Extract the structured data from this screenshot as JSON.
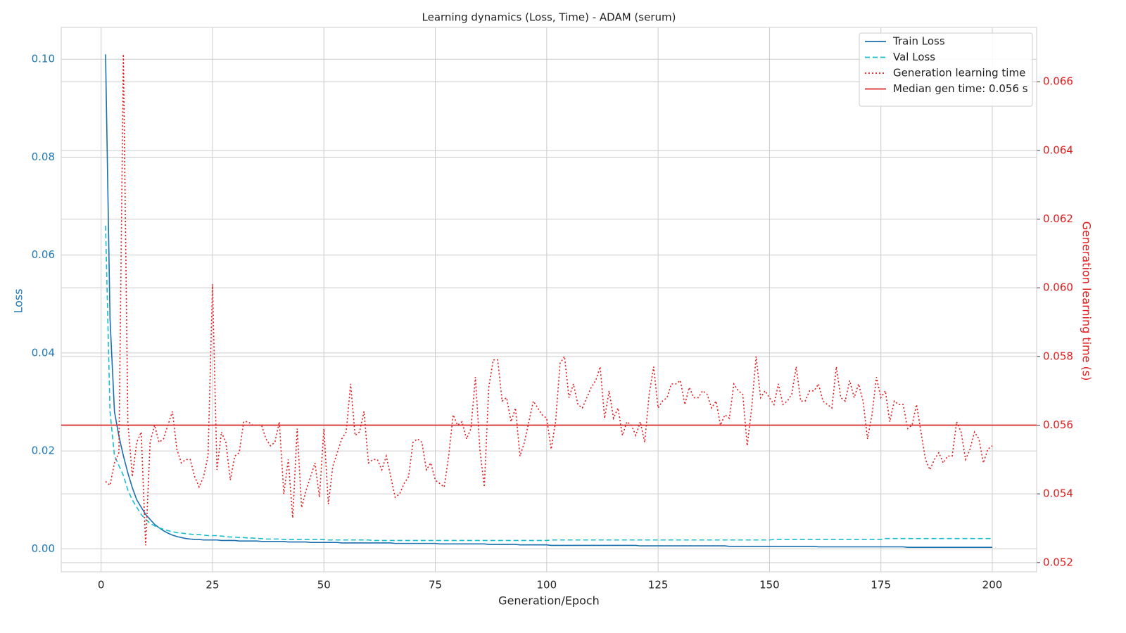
{
  "chart_data": {
    "type": "line",
    "title": "Learning dynamics (Loss, Time) - ADAM (serum)",
    "x_label": "Generation/Epoch",
    "y_label": "Loss",
    "y2_label": "Generation learning time (s)",
    "xlim": [
      -8.95,
      209.95
    ],
    "ylim": [
      -0.0047,
      0.1065
    ],
    "y2lim": [
      0.05173,
      0.06758
    ],
    "xticks": [
      0,
      25,
      50,
      75,
      100,
      125,
      150,
      175,
      200
    ],
    "yticks": [
      {
        "value": 0,
        "label": "0.00"
      },
      {
        "value": 0.02,
        "label": "0.02"
      },
      {
        "value": 0.04,
        "label": "0.04"
      },
      {
        "value": 0.06,
        "label": "0.06"
      },
      {
        "value": 0.08,
        "label": "0.08"
      },
      {
        "value": 0.1,
        "label": "0.10"
      }
    ],
    "y2ticks": [
      0.052,
      0.054,
      0.056,
      0.058,
      {
        "value": 0.06,
        "label": "0.060"
      },
      0.062,
      0.064,
      0.066
    ],
    "grid": true,
    "legend": "upper right",
    "y_color": "#1f77b4",
    "y2_color": "#e31a1c",
    "x": [
      1,
      2,
      3,
      4,
      5,
      6,
      7,
      8,
      9,
      10,
      11,
      12,
      13,
      14,
      15,
      16,
      17,
      18,
      19,
      20,
      21,
      22,
      23,
      24,
      25,
      26,
      27,
      28,
      29,
      30,
      31,
      32,
      33,
      34,
      35,
      36,
      37,
      38,
      39,
      40,
      41,
      42,
      43,
      44,
      45,
      46,
      47,
      48,
      49,
      50,
      51,
      52,
      53,
      54,
      55,
      56,
      57,
      58,
      59,
      60,
      61,
      62,
      63,
      64,
      65,
      66,
      67,
      68,
      69,
      70,
      71,
      72,
      73,
      74,
      75,
      76,
      77,
      78,
      79,
      80,
      81,
      82,
      83,
      84,
      85,
      86,
      87,
      88,
      89,
      90,
      91,
      92,
      93,
      94,
      95,
      96,
      97,
      98,
      99,
      100,
      101,
      102,
      103,
      104,
      105,
      106,
      107,
      108,
      109,
      110,
      111,
      112,
      113,
      114,
      115,
      116,
      117,
      118,
      119,
      120,
      121,
      122,
      123,
      124,
      125,
      126,
      127,
      128,
      129,
      130,
      131,
      132,
      133,
      134,
      135,
      136,
      137,
      138,
      139,
      140,
      141,
      142,
      143,
      144,
      145,
      146,
      147,
      148,
      149,
      150,
      151,
      152,
      153,
      154,
      155,
      156,
      157,
      158,
      159,
      160,
      161,
      162,
      163,
      164,
      165,
      166,
      167,
      168,
      169,
      170,
      171,
      172,
      173,
      174,
      175,
      176,
      177,
      178,
      179,
      180,
      181,
      182,
      183,
      184,
      185,
      186,
      187,
      188,
      189,
      190,
      191,
      192,
      193,
      194,
      195,
      196,
      197,
      198,
      199,
      200
    ],
    "series": [
      {
        "name": "Train Loss",
        "color": "#1a6faf",
        "style": "solid",
        "axis": "y",
        "values": [
          0.101,
          0.047,
          0.028,
          0.023,
          0.019,
          0.0155,
          0.0125,
          0.01,
          0.0085,
          0.007,
          0.006,
          0.005,
          0.0043,
          0.0037,
          0.0032,
          0.0028,
          0.0025,
          0.0023,
          0.0021,
          0.002,
          0.0019,
          0.0019,
          0.0018,
          0.0018,
          0.0018,
          0.0018,
          0.0017,
          0.0017,
          0.0017,
          0.0017,
          0.0016,
          0.0016,
          0.0016,
          0.0016,
          0.0016,
          0.0015,
          0.0015,
          0.0015,
          0.0015,
          0.0015,
          0.0015,
          0.0014,
          0.0014,
          0.0014,
          0.0014,
          0.0014,
          0.0013,
          0.0013,
          0.0013,
          0.0013,
          0.0013,
          0.0013,
          0.0013,
          0.0012,
          0.0012,
          0.0012,
          0.0012,
          0.0012,
          0.0012,
          0.0012,
          0.0012,
          0.0012,
          0.0012,
          0.0012,
          0.0012,
          0.0011,
          0.0011,
          0.0011,
          0.0011,
          0.0011,
          0.0011,
          0.0011,
          0.0011,
          0.0011,
          0.0011,
          0.001,
          0.001,
          0.001,
          0.001,
          0.001,
          0.001,
          0.001,
          0.001,
          0.001,
          0.001,
          0.001,
          0.0009,
          0.0009,
          0.0009,
          0.0009,
          0.0009,
          0.0009,
          0.0009,
          0.0008,
          0.0008,
          0.0008,
          0.0008,
          0.0008,
          0.0008,
          0.0008,
          0.0007,
          0.0007,
          0.0007,
          0.0007,
          0.0007,
          0.0007,
          0.0007,
          0.0007,
          0.0007,
          0.0007,
          0.0007,
          0.0007,
          0.0007,
          0.0007,
          0.0007,
          0.0007,
          0.0007,
          0.0007,
          0.0007,
          0.0007,
          0.0006,
          0.0006,
          0.0006,
          0.0006,
          0.0006,
          0.0006,
          0.0006,
          0.0006,
          0.0006,
          0.0006,
          0.0006,
          0.0006,
          0.0006,
          0.0006,
          0.0006,
          0.0006,
          0.0006,
          0.0006,
          0.0006,
          0.0006,
          0.0005,
          0.0005,
          0.0005,
          0.0005,
          0.0005,
          0.0005,
          0.0005,
          0.0005,
          0.0005,
          0.0005,
          0.0005,
          0.0005,
          0.0005,
          0.0005,
          0.0005,
          0.0005,
          0.0005,
          0.0005,
          0.0005,
          0.0005,
          0.0004,
          0.0004,
          0.0004,
          0.0004,
          0.0004,
          0.0004,
          0.0004,
          0.0004,
          0.0004,
          0.0004,
          0.0004,
          0.0004,
          0.0004,
          0.0004,
          0.0004,
          0.0004,
          0.0004,
          0.0004,
          0.0004,
          0.0004,
          0.0003,
          0.0003,
          0.0003,
          0.0003,
          0.0003,
          0.0003,
          0.0003,
          0.0003,
          0.0003,
          0.0003,
          0.0003,
          0.0003,
          0.0003,
          0.0003,
          0.0003,
          0.0003,
          0.0003,
          0.0003,
          0.0003,
          0.0003
        ]
      },
      {
        "name": "Val Loss",
        "color": "#17becf",
        "style": "dashed",
        "axis": "y",
        "values": [
          0.066,
          0.028,
          0.019,
          0.017,
          0.015,
          0.012,
          0.01,
          0.0085,
          0.007,
          0.006,
          0.0052,
          0.0047,
          0.0043,
          0.004,
          0.0037,
          0.0035,
          0.0033,
          0.0032,
          0.0031,
          0.003,
          0.0029,
          0.0029,
          0.0028,
          0.0027,
          0.0027,
          0.0027,
          0.0026,
          0.0025,
          0.0024,
          0.0024,
          0.0023,
          0.0023,
          0.0022,
          0.0022,
          0.0021,
          0.0021,
          0.002,
          0.002,
          0.002,
          0.002,
          0.0019,
          0.0019,
          0.0019,
          0.0019,
          0.0019,
          0.0019,
          0.0019,
          0.0019,
          0.0019,
          0.0019,
          0.0018,
          0.0018,
          0.0018,
          0.0018,
          0.0018,
          0.0018,
          0.0018,
          0.0018,
          0.0018,
          0.0018,
          0.0017,
          0.0017,
          0.0017,
          0.0017,
          0.0017,
          0.0017,
          0.0017,
          0.0017,
          0.0017,
          0.0017,
          0.0017,
          0.0017,
          0.0017,
          0.0017,
          0.0017,
          0.0017,
          0.0017,
          0.0017,
          0.0017,
          0.0017,
          0.0017,
          0.0017,
          0.0017,
          0.0017,
          0.0017,
          0.0017,
          0.0017,
          0.0017,
          0.0017,
          0.0017,
          0.0017,
          0.0017,
          0.0017,
          0.0017,
          0.0017,
          0.0017,
          0.0017,
          0.0017,
          0.0017,
          0.0017,
          0.0018,
          0.0018,
          0.0018,
          0.0018,
          0.0018,
          0.0018,
          0.0018,
          0.0018,
          0.0018,
          0.0018,
          0.0018,
          0.0018,
          0.0018,
          0.0018,
          0.0018,
          0.0018,
          0.0018,
          0.0018,
          0.0018,
          0.0018,
          0.0018,
          0.0018,
          0.0018,
          0.0018,
          0.0018,
          0.0018,
          0.0018,
          0.0018,
          0.0018,
          0.0018,
          0.0018,
          0.0018,
          0.0018,
          0.0018,
          0.0018,
          0.0018,
          0.0018,
          0.0018,
          0.0018,
          0.0018,
          0.0018,
          0.0018,
          0.0018,
          0.0018,
          0.0018,
          0.0018,
          0.0018,
          0.0018,
          0.0018,
          0.0018,
          0.0019,
          0.0019,
          0.0019,
          0.0019,
          0.0019,
          0.0019,
          0.0019,
          0.0019,
          0.0019,
          0.0019,
          0.0019,
          0.0019,
          0.0019,
          0.0019,
          0.0019,
          0.0019,
          0.0019,
          0.0019,
          0.0019,
          0.0019,
          0.0019,
          0.0019,
          0.0019,
          0.0019,
          0.0019,
          0.0021,
          0.0021,
          0.0021,
          0.0021,
          0.0021,
          0.0021,
          0.0021,
          0.0021,
          0.0021,
          0.0021,
          0.0021,
          0.0021,
          0.0021,
          0.0021,
          0.0021,
          0.0021,
          0.0021,
          0.0021,
          0.0021,
          0.0021,
          0.0021,
          0.0021,
          0.0021,
          0.0021,
          0.0021
        ]
      },
      {
        "name": "Generation learning time",
        "color": "#e31a1c",
        "style": "dotted",
        "axis": "y2",
        "values": [
          0.05436,
          0.05425,
          0.0549,
          0.0552,
          0.0668,
          0.0561,
          0.0545,
          0.0555,
          0.0558,
          0.0525,
          0.0555,
          0.056,
          0.0555,
          0.0556,
          0.056,
          0.0564,
          0.0553,
          0.0549,
          0.055,
          0.055,
          0.0545,
          0.0542,
          0.0545,
          0.0551,
          0.0601,
          0.0547,
          0.0558,
          0.0555,
          0.0544,
          0.0551,
          0.0552,
          0.0561,
          0.0561,
          0.056,
          0.056,
          0.056,
          0.0556,
          0.0554,
          0.0555,
          0.0561,
          0.054,
          0.055,
          0.0533,
          0.0559,
          0.0536,
          0.0541,
          0.0545,
          0.0549,
          0.0539,
          0.0559,
          0.0537,
          0.0548,
          0.0552,
          0.0556,
          0.0558,
          0.0572,
          0.0557,
          0.0558,
          0.0564,
          0.0549,
          0.055,
          0.055,
          0.0547,
          0.0551,
          0.0545,
          0.0539,
          0.054,
          0.0543,
          0.0545,
          0.0555,
          0.0556,
          0.0555,
          0.0547,
          0.0549,
          0.0544,
          0.0543,
          0.0542,
          0.0551,
          0.0563,
          0.056,
          0.0561,
          0.0556,
          0.0559,
          0.0574,
          0.0553,
          0.0542,
          0.0571,
          0.0579,
          0.0579,
          0.0567,
          0.0568,
          0.0561,
          0.0565,
          0.0551,
          0.0555,
          0.0561,
          0.0567,
          0.0565,
          0.0563,
          0.0562,
          0.0553,
          0.0561,
          0.0578,
          0.058,
          0.0568,
          0.0572,
          0.0566,
          0.0565,
          0.0568,
          0.0571,
          0.0573,
          0.0577,
          0.0562,
          0.057,
          0.0562,
          0.0565,
          0.0557,
          0.0561,
          0.056,
          0.0557,
          0.0561,
          0.0555,
          0.0569,
          0.0577,
          0.0565,
          0.0567,
          0.0568,
          0.0572,
          0.0572,
          0.0573,
          0.0566,
          0.0571,
          0.0568,
          0.0568,
          0.057,
          0.0569,
          0.0565,
          0.0567,
          0.056,
          0.0563,
          0.0562,
          0.0572,
          0.057,
          0.0569,
          0.0554,
          0.0565,
          0.058,
          0.0568,
          0.057,
          0.0568,
          0.0566,
          0.0572,
          0.0566,
          0.0567,
          0.0569,
          0.0577,
          0.0567,
          0.0567,
          0.057,
          0.057,
          0.0572,
          0.0567,
          0.0566,
          0.0565,
          0.0577,
          0.0568,
          0.0567,
          0.0573,
          0.0568,
          0.0572,
          0.0567,
          0.0556,
          0.0563,
          0.0574,
          0.0568,
          0.057,
          0.0561,
          0.0567,
          0.0566,
          0.0566,
          0.0559,
          0.056,
          0.0566,
          0.0558,
          0.055,
          0.0547,
          0.055,
          0.0552,
          0.0549,
          0.0551,
          0.0551,
          0.0561,
          0.0558,
          0.055,
          0.0553,
          0.0558,
          0.0556,
          0.0549,
          0.0553,
          0.0554
        ]
      }
    ],
    "hlines": [
      {
        "name": "Median gen time: 0.056 s",
        "value": 0.056,
        "color": "#d62728",
        "axis": "y2"
      }
    ]
  }
}
